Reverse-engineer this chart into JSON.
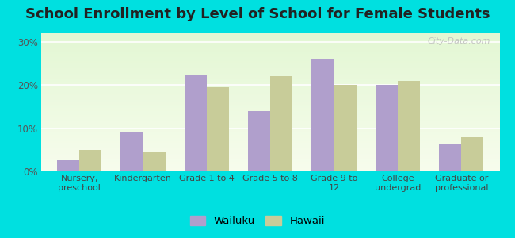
{
  "title": "School Enrollment by Level of School for Female Students",
  "categories": [
    "Nursery,\npreschool",
    "Kindergarten",
    "Grade 1 to 4",
    "Grade 5 to 8",
    "Grade 9 to\n12",
    "College\nundergrad",
    "Graduate or\nprofessional"
  ],
  "wailuku": [
    2.5,
    9.0,
    22.5,
    14.0,
    26.0,
    20.0,
    6.5
  ],
  "hawaii": [
    5.0,
    4.5,
    19.5,
    22.0,
    20.0,
    21.0,
    8.0
  ],
  "wailuku_color": "#b09fcc",
  "hawaii_color": "#c8cc99",
  "background_color": "#00e0e0",
  "yticks": [
    0,
    10,
    20,
    30
  ],
  "ylim": [
    0,
    32
  ],
  "bar_width": 0.35,
  "title_fontsize": 13,
  "legend_labels": [
    "Wailuku",
    "Hawaii"
  ],
  "watermark": "City-Data.com"
}
